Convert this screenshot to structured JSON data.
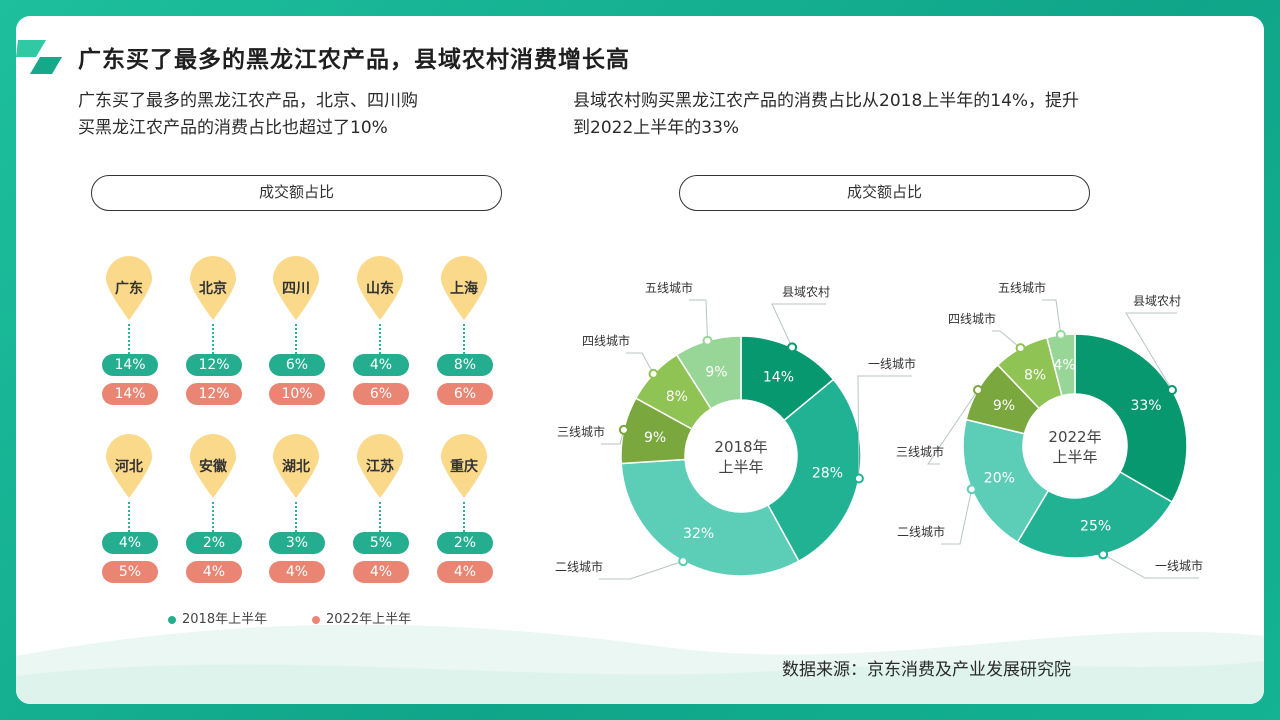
{
  "title": "广东买了最多的黑龙江农产品，县域农村消费增长高",
  "left_desc_line1": "广东买了最多的黑龙江农产品，北京、四川购",
  "left_desc_line2": "买黑龙江农产品的消费占比也超过了10%",
  "right_desc_line1": "县域农村购买黑龙江农产品的消费占比从2018上半年的14%，提升",
  "right_desc_line2": "到2022上半年的33%",
  "left_pill": "成交额占比",
  "right_pill": "成交额占比",
  "legend": {
    "s2018": "2018年上半年",
    "s2022": "2022年上半年"
  },
  "source": "数据来源：京东消费及产业发展研究院",
  "colors": {
    "green": "#24ae8f",
    "red": "#ea8573",
    "pin": "#fbd98a"
  },
  "chart_data": [
    {
      "type": "table",
      "title": "成交额占比",
      "columns": [
        "region",
        "2018年上半年",
        "2022年上半年"
      ],
      "rows": [
        {
          "region": "广东",
          "v2018": "14%",
          "v2022": "14%"
        },
        {
          "region": "北京",
          "v2018": "12%",
          "v2022": "12%"
        },
        {
          "region": "四川",
          "v2018": "6%",
          "v2022": "10%"
        },
        {
          "region": "山东",
          "v2018": "4%",
          "v2022": "6%"
        },
        {
          "region": "上海",
          "v2018": "8%",
          "v2022": "6%"
        },
        {
          "region": "河北",
          "v2018": "4%",
          "v2022": "5%"
        },
        {
          "region": "安徽",
          "v2018": "2%",
          "v2022": "4%"
        },
        {
          "region": "湖北",
          "v2018": "3%",
          "v2022": "4%"
        },
        {
          "region": "江苏",
          "v2018": "5%",
          "v2022": "4%"
        },
        {
          "region": "重庆",
          "v2018": "2%",
          "v2022": "4%"
        }
      ]
    },
    {
      "type": "pie",
      "title": "成交额占比",
      "center_label_line1": "2018年",
      "center_label_line2": "上半年",
      "slices": [
        {
          "name": "县域农村",
          "value": 14,
          "label": "14%",
          "color": "#08986f"
        },
        {
          "name": "一线城市",
          "value": 28,
          "label": "28%",
          "color": "#21b294"
        },
        {
          "name": "二线城市",
          "value": 32,
          "label": "32%",
          "color": "#5ccdb7"
        },
        {
          "name": "三线城市",
          "value": 9,
          "label": "9%",
          "color": "#7aa73e"
        },
        {
          "name": "四线城市",
          "value": 8,
          "label": "8%",
          "color": "#8fc354"
        },
        {
          "name": "五线城市",
          "value": 9,
          "label": "9%",
          "color": "#98d698"
        }
      ]
    },
    {
      "type": "pie",
      "center_label_line1": "2022年",
      "center_label_line2": "上半年",
      "slices": [
        {
          "name": "县域农村",
          "value": 33,
          "label": "33%",
          "color": "#08986f"
        },
        {
          "name": "一线城市",
          "value": 25,
          "label": "25%",
          "color": "#21b294"
        },
        {
          "name": "二线城市",
          "value": 20,
          "label": "20%",
          "color": "#5ccdb7"
        },
        {
          "name": "三线城市",
          "value": 9,
          "label": "9%",
          "color": "#7aa73e"
        },
        {
          "name": "四线城市",
          "value": 8,
          "label": "8%",
          "color": "#8fc354"
        },
        {
          "name": "五线城市",
          "value": 4,
          "label": "4%",
          "color": "#98d698"
        }
      ]
    }
  ]
}
